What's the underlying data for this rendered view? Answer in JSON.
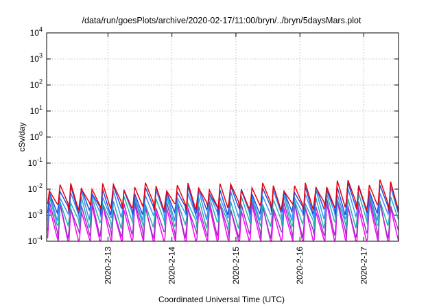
{
  "chart_data": {
    "type": "line",
    "title": "/data/run/goesPlots/archive/2020-02-17/11:00/bryn/../bryn/5daysMars.plot",
    "xlabel": "Coordinated Universal Time (UTC)",
    "ylabel": "cSv/day",
    "y_scale": "log",
    "ylim": [
      0.0001,
      10000
    ],
    "y_ticks": [
      {
        "base": "10",
        "exp": "-4",
        "value": 0.0001
      },
      {
        "base": "10",
        "exp": "-3",
        "value": 0.001
      },
      {
        "base": "10",
        "exp": "-2",
        "value": 0.01
      },
      {
        "base": "10",
        "exp": "-1",
        "value": 0.1
      },
      {
        "base": "10",
        "exp": "0",
        "value": 1
      },
      {
        "base": "10",
        "exp": "1",
        "value": 10
      },
      {
        "base": "10",
        "exp": "2",
        "value": 100
      },
      {
        "base": "10",
        "exp": "3",
        "value": 1000
      },
      {
        "base": "10",
        "exp": "4",
        "value": 10000
      }
    ],
    "xlim": [
      "2020-02-12 01:00",
      "2020-02-17 13:00"
    ],
    "x_ticks": [
      "2020-2-13",
      "2020-2-14",
      "2020-2-15",
      "2020-2-16",
      "2020-2-17"
    ],
    "grid": true,
    "pattern": "sawtooth: sharp rise then decay, about 6 cycles per day",
    "series": [
      {
        "color": "#e8000b",
        "peak": 0.013,
        "trough": 0.003
      },
      {
        "color": "#1f4fe0",
        "peak": 0.01,
        "trough": 0.002
      },
      {
        "color": "#3a8cff",
        "peak": 0.007,
        "trough": 0.0012
      },
      {
        "color": "#20b2aa",
        "peak": 0.004,
        "trough": 0.0006
      },
      {
        "color": "#9c2fc0",
        "peak": 0.0025,
        "trough": 0.00025
      },
      {
        "color": "#ff00ff",
        "peak": 0.002,
        "trough": 0.00012
      }
    ]
  }
}
